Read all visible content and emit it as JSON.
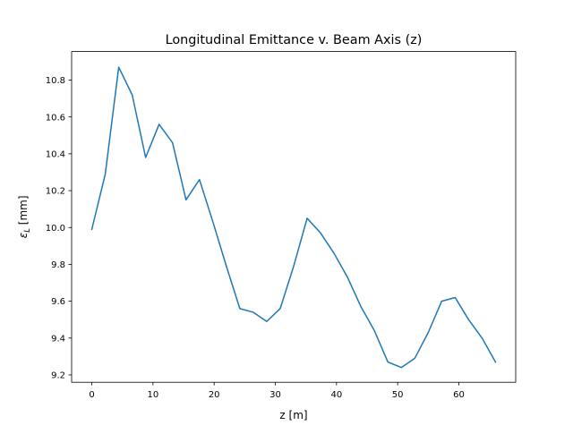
{
  "chart_data": {
    "type": "line",
    "title": "Longitudinal Emittance v. Beam Axis (z)",
    "xlabel": "z [m]",
    "ylabel_symbol": "ε",
    "ylabel_subscript": "L",
    "ylabel_unit": " [mm]",
    "xlim": [
      -3.3,
      69.3
    ],
    "ylim": [
      9.16,
      10.955
    ],
    "x_ticks": [
      0,
      10,
      20,
      30,
      40,
      50,
      60
    ],
    "x_tick_labels": [
      "0",
      "10",
      "20",
      "30",
      "40",
      "50",
      "60"
    ],
    "y_ticks": [
      9.2,
      9.4,
      9.6,
      9.8,
      10.0,
      10.2,
      10.4,
      10.6,
      10.8
    ],
    "y_tick_labels": [
      "9.2",
      "9.4",
      "9.6",
      "9.8",
      "10.0",
      "10.2",
      "10.4",
      "10.6",
      "10.8"
    ],
    "grid": false,
    "line_color": "#1f77b4",
    "series": [
      {
        "x": [
          0.0,
          2.2,
          4.4,
          6.6,
          8.8,
          11.0,
          13.2,
          15.4,
          17.6,
          19.8,
          22.0,
          24.2,
          26.4,
          28.6,
          30.8,
          33.0,
          35.2,
          37.4,
          39.6,
          41.8,
          44.0,
          46.2,
          48.4,
          50.6,
          52.8,
          55.0,
          57.2,
          59.4,
          61.6,
          63.8,
          66.0
        ],
        "y": [
          9.99,
          10.29,
          10.87,
          10.72,
          10.38,
          10.56,
          10.46,
          10.15,
          10.26,
          10.03,
          9.79,
          9.56,
          9.54,
          9.49,
          9.56,
          9.79,
          10.05,
          9.97,
          9.86,
          9.73,
          9.57,
          9.44,
          9.27,
          9.24,
          9.29,
          9.43,
          9.6,
          9.62,
          9.5,
          9.4,
          9.27
        ]
      }
    ]
  }
}
